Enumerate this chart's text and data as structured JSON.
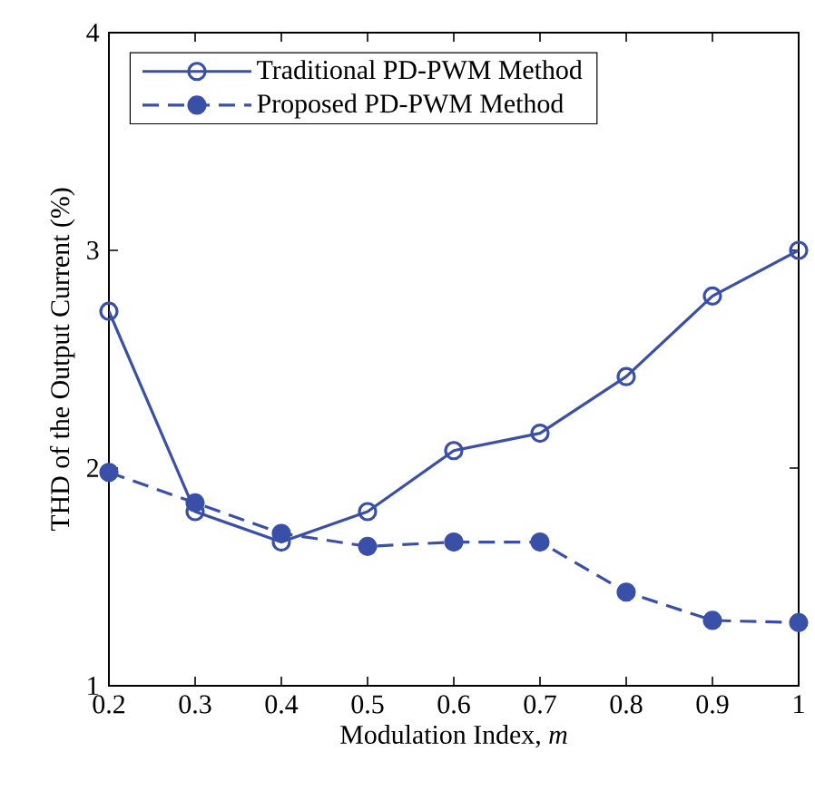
{
  "chart_data": {
    "type": "line",
    "xlabel": "Modulation Index, *m*",
    "ylabel": "THD of the Output Current (%)",
    "x": [
      0.2,
      0.3,
      0.4,
      0.5,
      0.6,
      0.7,
      0.8,
      0.9,
      1
    ],
    "series": [
      {
        "name": "Traditional PD-PWM Method",
        "color": "#3a50a8",
        "marker": "circle",
        "line_style": "solid",
        "values": [
          2.72,
          1.8,
          1.66,
          1.8,
          2.08,
          2.16,
          2.42,
          2.79,
          3.0
        ]
      },
      {
        "name": "Proposed PD-PWM Method",
        "color": "#3a50a8",
        "marker": "filled circle",
        "line_style": "dashed",
        "values": [
          1.98,
          1.84,
          1.7,
          1.64,
          1.66,
          1.66,
          1.43,
          1.3,
          1.29
        ]
      }
    ],
    "xlim": [
      0.2,
      1
    ],
    "ylim": [
      1,
      4
    ],
    "xticks": [
      0.2,
      0.3,
      0.4,
      0.5,
      0.6,
      0.7,
      0.8,
      0.9,
      1
    ],
    "yticks": [
      1,
      2,
      3,
      4
    ],
    "grid": false,
    "legend": "top left"
  }
}
